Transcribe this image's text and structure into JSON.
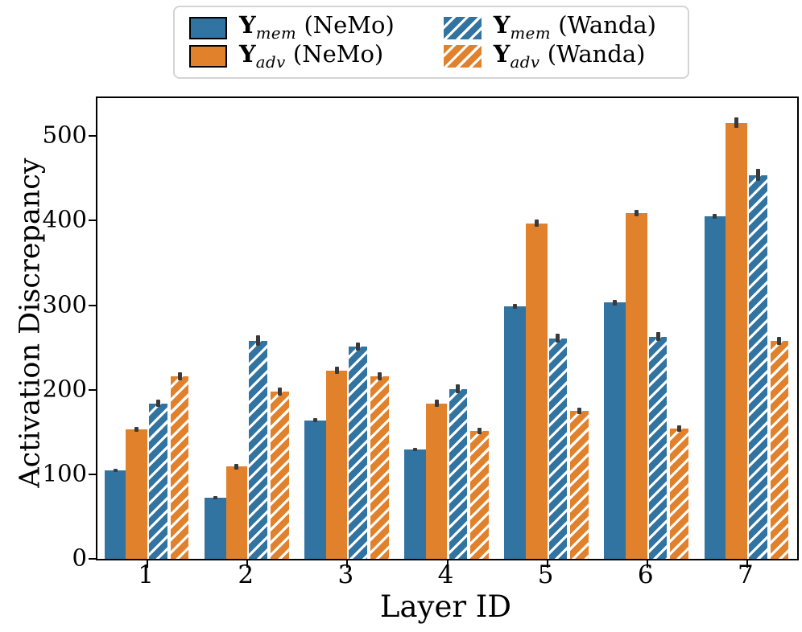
{
  "chart_data": {
    "type": "bar",
    "title": "",
    "xlabel": "Layer ID",
    "ylabel": "Activation Discrepancy",
    "categories": [
      "1",
      "2",
      "3",
      "4",
      "5",
      "6",
      "7"
    ],
    "ylim": [
      0,
      545
    ],
    "yticks": [
      0,
      100,
      200,
      300,
      400,
      500
    ],
    "grid": false,
    "legend_position": "top-center",
    "bar_group_fraction": 0.86,
    "series": [
      {
        "name": "Y_mem (NeMo)",
        "label_main": "Y",
        "label_sub": "mem",
        "label_rest": " (NeMo)",
        "color": "#3274A1",
        "hatch": false,
        "values": [
          105,
          72,
          164,
          129,
          299,
          303,
          405
        ],
        "errors": [
          2,
          2,
          2,
          2,
          3,
          3,
          3
        ]
      },
      {
        "name": "Y_adv (NeMo)",
        "label_main": "Y",
        "label_sub": "adv",
        "label_rest": " (NeMo)",
        "color": "#E1812C",
        "hatch": false,
        "values": [
          153,
          109,
          223,
          184,
          397,
          409,
          516
        ],
        "errors": [
          3,
          3,
          4,
          4,
          4,
          4,
          6
        ]
      },
      {
        "name": "Y_mem (Wanda)",
        "label_main": "Y",
        "label_sub": "mem",
        "label_rest": " (Wanda)",
        "color": "#3274A1",
        "hatch": true,
        "values": [
          184,
          258,
          251,
          201,
          261,
          263,
          454
        ],
        "errors": [
          4,
          6,
          5,
          5,
          5,
          5,
          7
        ]
      },
      {
        "name": "Y_adv (Wanda)",
        "label_main": "Y",
        "label_sub": "adv",
        "label_rest": " (Wanda)",
        "color": "#E1812C",
        "hatch": true,
        "values": [
          216,
          198,
          216,
          151,
          175,
          154,
          258
        ],
        "errors": [
          5,
          5,
          5,
          4,
          4,
          4,
          5
        ]
      }
    ],
    "error_bar_color": "#3a3a3a",
    "axis_color": "#000000",
    "hatch_pattern": "diagonal-white-stripes"
  }
}
